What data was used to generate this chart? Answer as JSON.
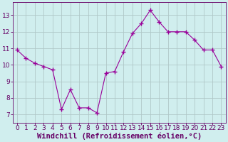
{
  "x": [
    0,
    1,
    2,
    3,
    4,
    5,
    6,
    7,
    8,
    9,
    10,
    11,
    12,
    13,
    14,
    15,
    16,
    17,
    18,
    19,
    20,
    21,
    22,
    23
  ],
  "y": [
    10.9,
    10.4,
    10.1,
    9.9,
    9.7,
    7.3,
    8.5,
    7.4,
    7.4,
    7.1,
    9.5,
    9.6,
    10.8,
    11.9,
    12.5,
    13.3,
    12.6,
    12.0,
    12.0,
    12.0,
    11.5,
    10.9,
    10.9,
    9.9
  ],
  "line_color": "#990099",
  "marker": "+",
  "marker_size": 4,
  "bg_color": "#d0eeee",
  "grid_color": "#b0c8c8",
  "xlabel": "Windchill (Refroidissement éolien,°C)",
  "xlabel_color": "#660066",
  "xlabel_fontsize": 7.5,
  "tick_color": "#660066",
  "tick_fontsize": 6.5,
  "xlim": [
    -0.5,
    23.5
  ],
  "ylim": [
    6.5,
    13.8
  ],
  "yticks": [
    7,
    8,
    9,
    10,
    11,
    12,
    13
  ],
  "xticks": [
    0,
    1,
    2,
    3,
    4,
    5,
    6,
    7,
    8,
    9,
    10,
    11,
    12,
    13,
    14,
    15,
    16,
    17,
    18,
    19,
    20,
    21,
    22,
    23
  ]
}
